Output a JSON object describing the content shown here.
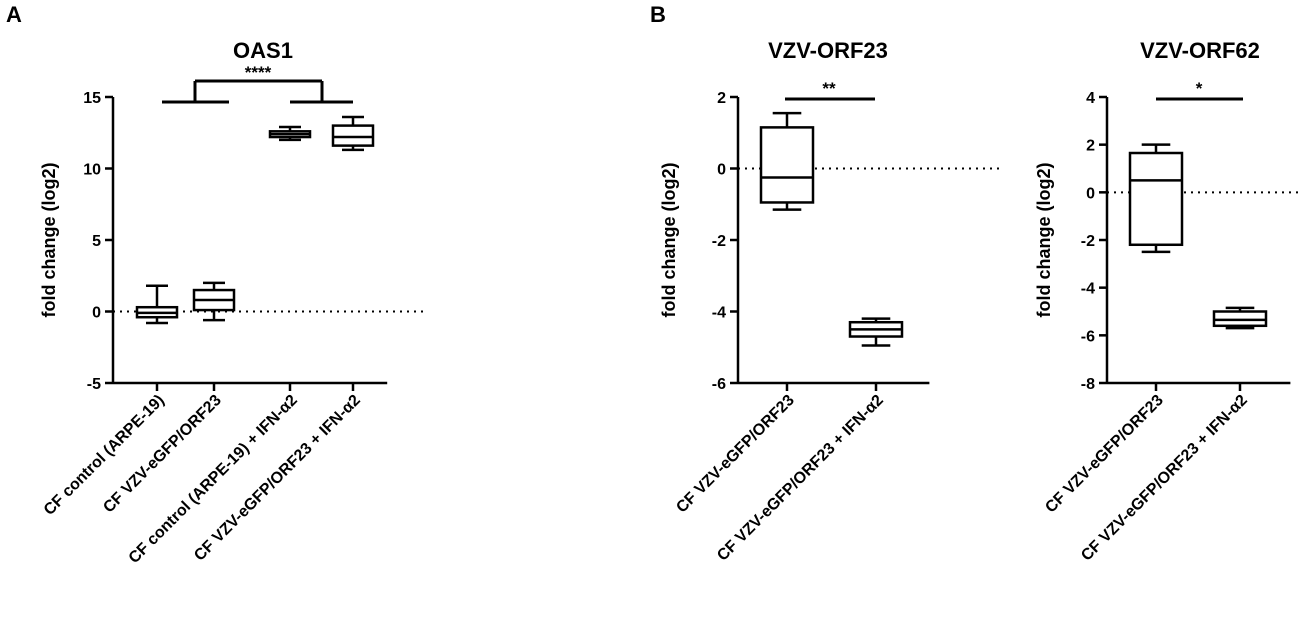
{
  "panels": [
    "A",
    "B"
  ],
  "chart_data": [
    {
      "type": "box",
      "panel": "A",
      "title": "OAS1",
      "ylabel": "fold change (log2)",
      "ylim": [
        -5,
        15
      ],
      "yticks": [
        -5,
        0,
        5,
        10,
        15
      ],
      "reference_line_y": 0,
      "categories": [
        "CF control (ARPE-19)",
        "CF VZV-eGFP/ORF23",
        "CF control (ARPE-19) + IFN-α2",
        "CF VZV-eGFP/ORF23 + IFN-α2"
      ],
      "boxes": [
        {
          "min": -0.8,
          "q1": -0.4,
          "median": -0.1,
          "q3": 0.3,
          "max": 1.8
        },
        {
          "min": -0.6,
          "q1": 0.1,
          "median": 0.8,
          "q3": 1.5,
          "max": 2.0
        },
        {
          "min": 12.0,
          "q1": 12.2,
          "median": 12.4,
          "q3": 12.6,
          "max": 12.9
        },
        {
          "min": 11.3,
          "q1": 11.6,
          "median": 12.2,
          "q3": 13.0,
          "max": 13.6
        }
      ],
      "significance": "****"
    },
    {
      "type": "box",
      "panel": "B",
      "title": "VZV-ORF23",
      "ylabel": "fold change (log2)",
      "ylim": [
        -6,
        2
      ],
      "yticks": [
        -6,
        -4,
        -2,
        0,
        2
      ],
      "reference_line_y": 0,
      "categories": [
        "CF VZV-eGFP/ORF23",
        "CF VZV-eGFP/ORF23 + IFN-α2"
      ],
      "boxes": [
        {
          "min": -1.15,
          "q1": -0.95,
          "median": -0.25,
          "q3": 1.15,
          "max": 1.55
        },
        {
          "min": -4.95,
          "q1": -4.7,
          "median": -4.5,
          "q3": -4.3,
          "max": -4.2
        }
      ],
      "significance": "**"
    },
    {
      "type": "box",
      "panel": "",
      "title": "VZV-ORF62",
      "ylabel": "fold change (log2)",
      "ylim": [
        -8,
        4
      ],
      "yticks": [
        -8,
        -6,
        -4,
        -2,
        0,
        2,
        4
      ],
      "reference_line_y": 0,
      "categories": [
        "CF VZV-eGFP/ORF23",
        "CF VZV-eGFP/ORF23 + IFN-α2"
      ],
      "boxes": [
        {
          "min": -2.5,
          "q1": -2.2,
          "median": 0.5,
          "q3": 1.65,
          "max": 2.0
        },
        {
          "min": -5.7,
          "q1": -5.6,
          "median": -5.35,
          "q3": -5.0,
          "max": -4.85
        }
      ],
      "significance": "*"
    }
  ]
}
